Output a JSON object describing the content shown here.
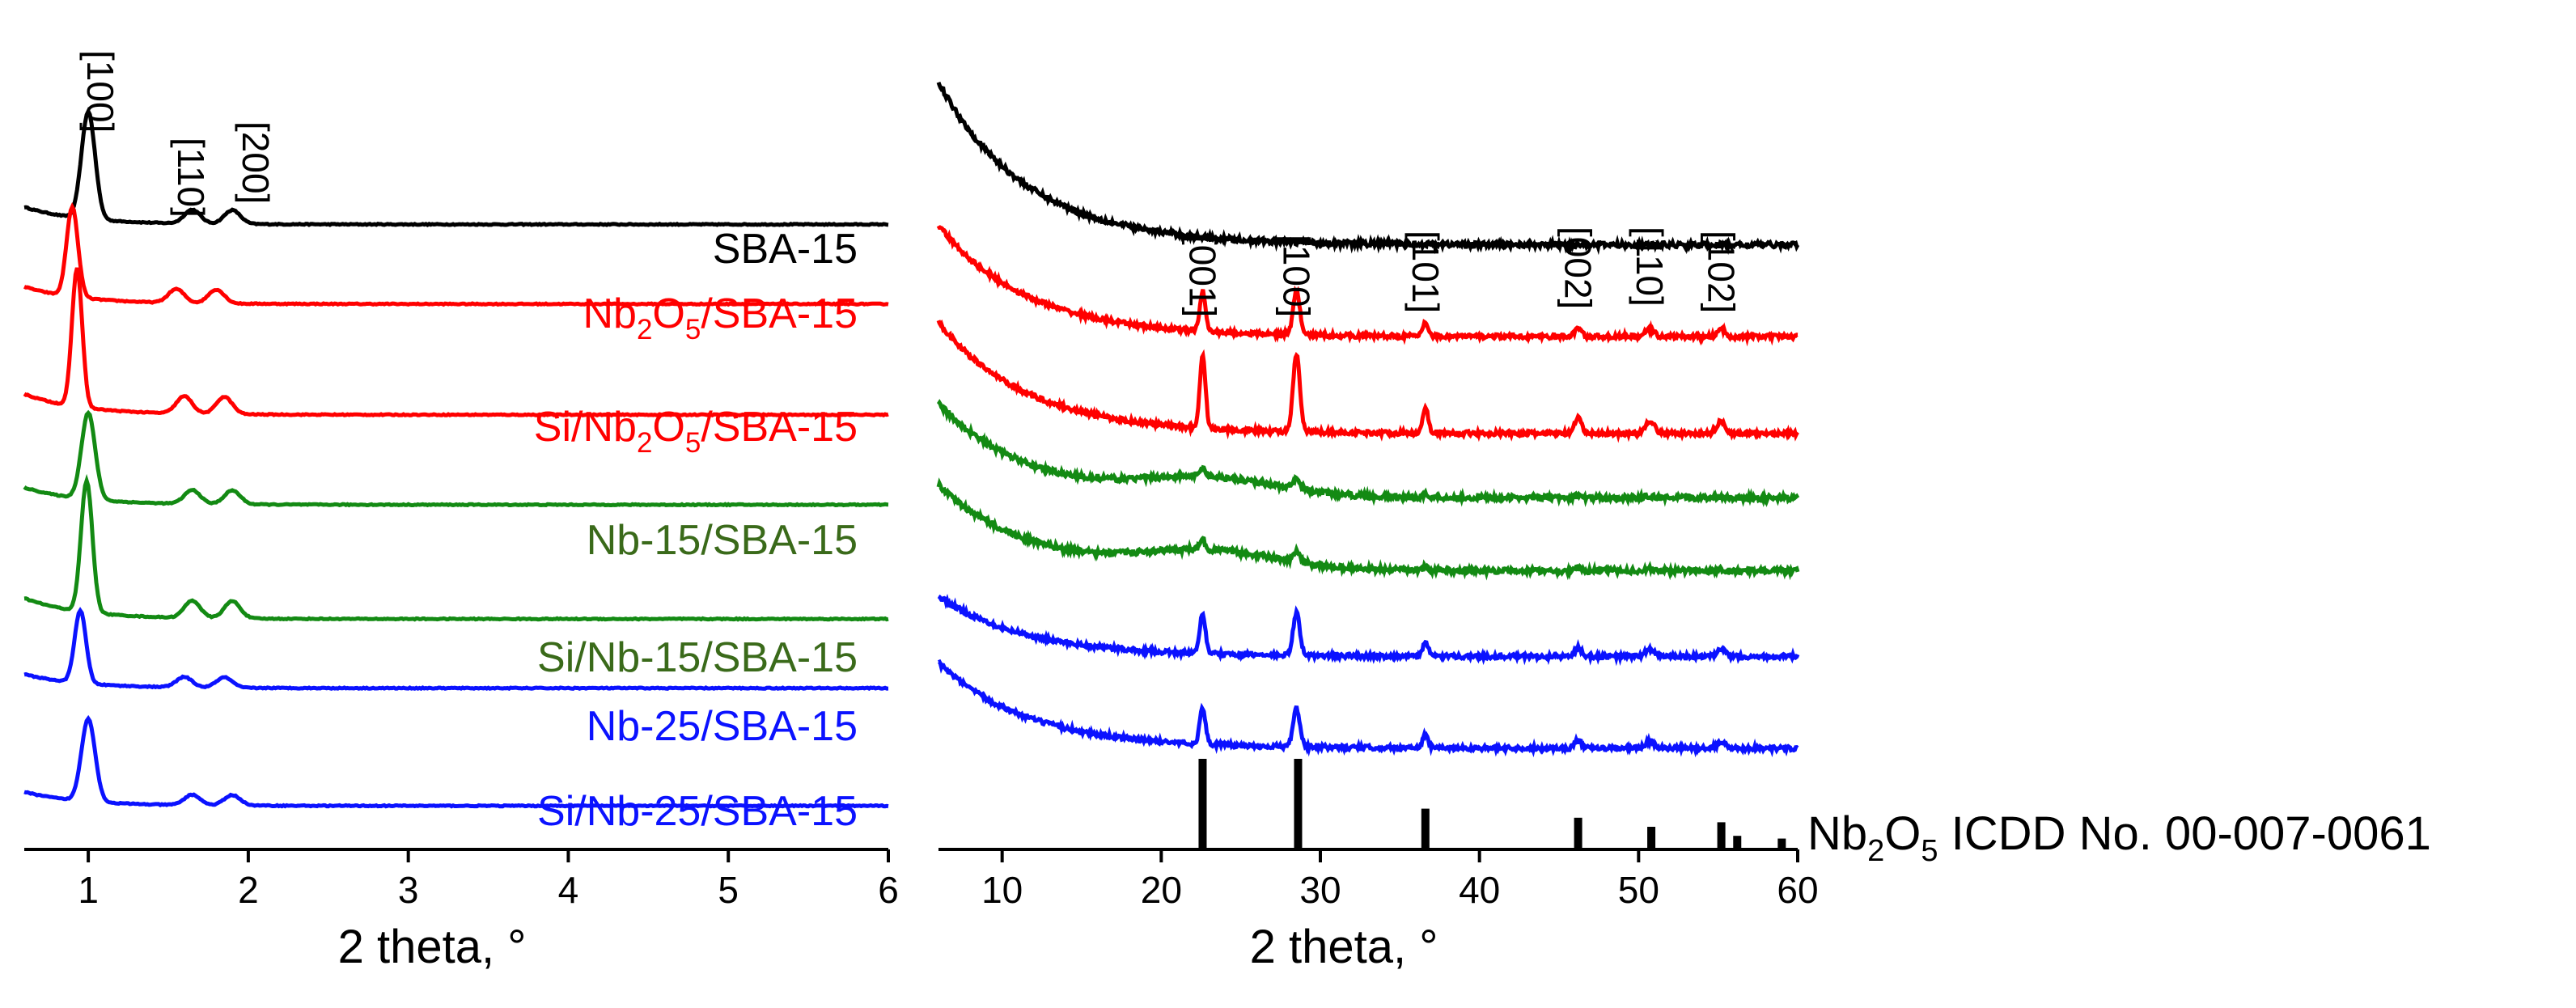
{
  "colors": {
    "axis": "#000000",
    "black": "#000000",
    "red": "#ff0000",
    "green": "#138a13",
    "blue": "#0b12ff",
    "label_green": "#3a6a1a"
  },
  "chart_data": [
    {
      "id": "low-angle",
      "type": "line",
      "title": "",
      "xlabel": "2 theta, °",
      "ylabel": "",
      "xlim": [
        0.6,
        6
      ],
      "xticks": [
        "1",
        "2",
        "3",
        "4",
        "5",
        "6"
      ],
      "xtick_values": [
        1,
        2,
        3,
        4,
        5,
        6
      ],
      "grid": false,
      "peak_annotations": [
        {
          "label": "[100]",
          "x": 1.0
        },
        {
          "label": "[110]",
          "x": 1.65
        },
        {
          "label": "[200]",
          "x": 1.9
        }
      ],
      "series": [
        {
          "name": "SBA-15",
          "label_main": "SBA-15",
          "label_sub": "",
          "label_tail": "",
          "color": "black",
          "label_color": "black",
          "baseline": 0.86,
          "peaks": [
            [
              1.0,
              0.155,
              0.06
            ],
            [
              1.65,
              0.02,
              0.07
            ],
            [
              1.9,
              0.02,
              0.07
            ]
          ],
          "tail_amp": 0.025
        },
        {
          "name": "Nb2O5/SBA-15",
          "label_main": "Nb",
          "label_sub": "2",
          "label_tail": "O|5|/SBA-15",
          "color": "red",
          "label_color": "red",
          "baseline": 0.745,
          "peaks": [
            [
              0.9,
              0.13,
              0.05
            ],
            [
              1.55,
              0.02,
              0.07
            ],
            [
              1.8,
              0.02,
              0.07
            ]
          ],
          "tail_amp": 0.025
        },
        {
          "name": "Si/Nb2O5/SBA-15",
          "label_main": "Si/Nb",
          "label_sub": "2",
          "label_tail": "O|5|/SBA-15",
          "color": "red",
          "label_color": "red",
          "baseline": 0.585,
          "peaks": [
            [
              0.93,
              0.2,
              0.045
            ],
            [
              1.6,
              0.025,
              0.07
            ],
            [
              1.85,
              0.025,
              0.07
            ]
          ],
          "tail_amp": 0.03
        },
        {
          "name": "Nb-15/SBA-15",
          "label_main": "Nb-15/SBA-15",
          "label_sub": "",
          "label_tail": "",
          "color": "green",
          "label_color": "label_green",
          "baseline": 0.455,
          "peaks": [
            [
              1.0,
              0.125,
              0.06
            ],
            [
              1.65,
              0.02,
              0.07
            ],
            [
              1.9,
              0.02,
              0.07
            ]
          ],
          "tail_amp": 0.025
        },
        {
          "name": "Si/Nb-15/SBA-15",
          "label_main": "Si/Nb-15/SBA-15",
          "label_sub": "",
          "label_tail": "",
          "color": "green",
          "label_color": "label_green",
          "baseline": 0.29,
          "peaks": [
            [
              0.99,
              0.19,
              0.05
            ],
            [
              1.65,
              0.025,
              0.07
            ],
            [
              1.9,
              0.025,
              0.07
            ]
          ],
          "tail_amp": 0.03
        },
        {
          "name": "Nb-25/SBA-15",
          "label_main": "Nb-25/SBA-15",
          "label_sub": "",
          "label_tail": "",
          "color": "blue",
          "label_color": "blue",
          "baseline": 0.19,
          "peaks": [
            [
              0.95,
              0.105,
              0.05
            ],
            [
              1.6,
              0.015,
              0.07
            ],
            [
              1.85,
              0.015,
              0.07
            ]
          ],
          "tail_amp": 0.02
        },
        {
          "name": "Si/Nb-25/SBA-15",
          "label_main": "Si/Nb-25/SBA-15",
          "label_sub": "",
          "label_tail": "",
          "color": "blue",
          "label_color": "blue",
          "baseline": 0.02,
          "peaks": [
            [
              1.0,
              0.12,
              0.06
            ],
            [
              1.65,
              0.015,
              0.07
            ],
            [
              1.9,
              0.015,
              0.07
            ]
          ],
          "tail_amp": 0.02
        }
      ]
    },
    {
      "id": "wide-angle",
      "type": "line",
      "title": "",
      "xlabel": "2 theta, °",
      "ylabel": "",
      "xlim": [
        6,
        60
      ],
      "xticks": [
        "10",
        "20",
        "30",
        "40",
        "50",
        "60"
      ],
      "xtick_values": [
        10,
        20,
        30,
        40,
        50,
        60
      ],
      "grid": false,
      "peak_annotations": [
        {
          "label": "[001]",
          "x": 22.6
        },
        {
          "label": "[100]",
          "x": 28.5
        },
        {
          "label": "[101]",
          "x": 36.6
        },
        {
          "label": "[002]",
          "x": 46.2
        },
        {
          "label": "[110]",
          "x": 50.7
        },
        {
          "label": "[102]",
          "x": 55.2
        }
      ],
      "series": [
        {
          "name": "SBA-15",
          "color": "black",
          "baseline": 0.705,
          "decay": 0.19,
          "hump": 0.0,
          "peak_scale": 0.0,
          "noise": 0.006
        },
        {
          "name": "Nb2O5/SBA-15",
          "color": "red",
          "baseline": 0.598,
          "decay": 0.13,
          "hump": 0.0,
          "peak_scale": 0.55,
          "noise": 0.005
        },
        {
          "name": "Si/Nb2O5/SBA-15",
          "color": "red",
          "baseline": 0.485,
          "decay": 0.13,
          "hump": 0.0,
          "peak_scale": 1.0,
          "noise": 0.005
        },
        {
          "name": "Nb-15/SBA-15",
          "color": "green",
          "baseline": 0.41,
          "decay": 0.11,
          "hump": 0.02,
          "peak_scale": 0.12,
          "noise": 0.006
        },
        {
          "name": "Si/Nb-15/SBA-15",
          "color": "green",
          "baseline": 0.325,
          "decay": 0.1,
          "hump": 0.02,
          "peak_scale": 0.13,
          "noise": 0.006
        },
        {
          "name": "Nb-25/SBA-15",
          "color": "blue",
          "baseline": 0.225,
          "decay": 0.07,
          "hump": 0.0,
          "peak_scale": 0.55,
          "noise": 0.005
        },
        {
          "name": "Si/Nb-25/SBA-15",
          "color": "blue",
          "baseline": 0.118,
          "decay": 0.1,
          "hump": 0.0,
          "peak_scale": 0.5,
          "noise": 0.005
        }
      ],
      "crystal_peaks": [
        {
          "x": 22.6,
          "h": 0.085,
          "w": 0.25
        },
        {
          "x": 28.5,
          "h": 0.09,
          "w": 0.3
        },
        {
          "x": 36.6,
          "h": 0.03,
          "w": 0.25
        },
        {
          "x": 46.2,
          "h": 0.018,
          "w": 0.3
        },
        {
          "x": 50.7,
          "h": 0.015,
          "w": 0.4
        },
        {
          "x": 55.2,
          "h": 0.015,
          "w": 0.35
        }
      ],
      "reference": {
        "name": "Nb2O5 ICDD No. 00-007-0061",
        "label_main": "Nb",
        "label_sub": "2",
        "label_mid": "O",
        "label_sub2": "5",
        "label_tail": " ICDD No. 00-007-0061",
        "sticks": [
          {
            "x": 22.6,
            "intensity": 100
          },
          {
            "x": 28.6,
            "intensity": 100
          },
          {
            "x": 36.6,
            "intensity": 45
          },
          {
            "x": 46.2,
            "intensity": 35
          },
          {
            "x": 50.8,
            "intensity": 25
          },
          {
            "x": 55.2,
            "intensity": 30
          },
          {
            "x": 56.2,
            "intensity": 15
          },
          {
            "x": 59.0,
            "intensity": 12
          }
        ]
      }
    }
  ]
}
